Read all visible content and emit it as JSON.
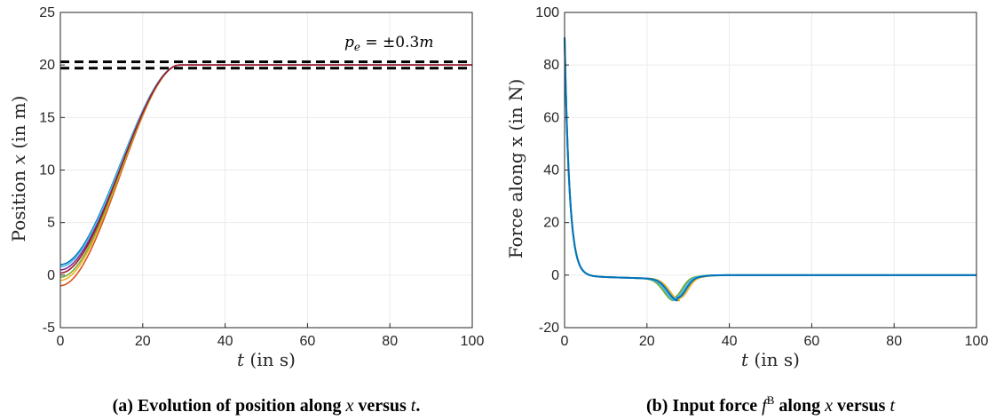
{
  "chart_data": [
    {
      "type": "line",
      "caption": {
        "prefix": "(a) Evolution of position along ",
        "var1": "x",
        "mid": " versus ",
        "var2": "t",
        "suffix": "."
      },
      "xlabel": {
        "var": "t",
        "rest": " (in s)"
      },
      "ylabel": {
        "pre": "Position ",
        "var": "x",
        "rest": " (in m)"
      },
      "xlim": [
        0,
        100
      ],
      "ylim": [
        -5,
        25
      ],
      "xticks": [
        0,
        20,
        40,
        60,
        80,
        100
      ],
      "yticks": [
        -5,
        0,
        5,
        10,
        15,
        20,
        25
      ],
      "grid": true,
      "reference_lines": [
        20.3,
        19.7
      ],
      "annotation": "p_e = ±0.3m",
      "annotation_parts": {
        "p": "p",
        "sub": "e",
        "eq": " = ±0.3",
        "m": "m"
      },
      "series": [
        {
          "color": "#0072BD",
          "initial": 1.0
        },
        {
          "color": "#D95319",
          "initial": -1.0
        },
        {
          "color": "#EDB120",
          "initial": -0.5
        },
        {
          "color": "#7E2F8E",
          "initial": 0.5
        },
        {
          "color": "#77AC30",
          "initial": -0.2
        },
        {
          "color": "#4DBEEE",
          "initial": 0.8
        },
        {
          "color": "#A2142F",
          "initial": 0.2
        }
      ],
      "final_value": 20
    },
    {
      "type": "line",
      "caption": {
        "prefix": "(b) Input force ",
        "f": "f",
        "sup": "B",
        "mid": " along ",
        "var1": "x",
        "mid2": " versus ",
        "var2": "t"
      },
      "xlabel": {
        "var": "t",
        "rest": " (in s)"
      },
      "ylabel": {
        "text": "Force along x (in N)"
      },
      "xlim": [
        0,
        100
      ],
      "ylim": [
        -20,
        100
      ],
      "xticks": [
        0,
        20,
        40,
        60,
        80,
        100
      ],
      "yticks": [
        -20,
        0,
        20,
        40,
        60,
        80,
        100
      ],
      "grid": true,
      "initial_force": 91,
      "min_force": -9.5,
      "min_time": 27.5,
      "series": [
        {
          "color": "#77AC30",
          "shift": -1.0
        },
        {
          "color": "#EDB120",
          "shift": 0.5
        },
        {
          "color": "#4DBEEE",
          "shift": -0.5
        },
        {
          "color": "#0072BD",
          "shift": 0.0
        }
      ]
    }
  ]
}
